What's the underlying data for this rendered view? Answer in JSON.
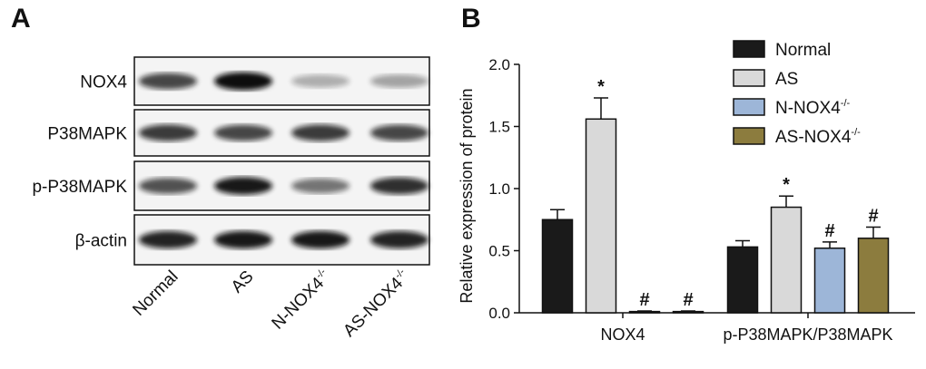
{
  "blot": {
    "panel_label": "A",
    "rows": [
      "NOX4",
      "P38MAPK",
      "p-P38MAPK",
      "β-actin"
    ],
    "lanes": [
      {
        "text": "Normal",
        "sup": null
      },
      {
        "text": "AS",
        "sup": null
      },
      {
        "text": "N-NOX4",
        "sup": "-/-"
      },
      {
        "text": "AS-NOX4",
        "sup": "-/-"
      }
    ]
  },
  "chart_data": {
    "type": "bar",
    "panel_label": "B",
    "ylabel": "Relative expression of protein",
    "categories": [
      "NOX4",
      "p-P38MAPK/P38MAPK"
    ],
    "ylim": [
      0,
      2.0
    ],
    "yticks": [
      {
        "value": 0,
        "label": "0.0"
      },
      {
        "value": 0.5,
        "label": "0.5"
      },
      {
        "value": 1.0,
        "label": "1.0"
      },
      {
        "value": 1.5,
        "label": "1.5"
      },
      {
        "value": 2.0,
        "label": "2.0"
      }
    ],
    "legend": "upper right",
    "series": [
      {
        "name": "Normal",
        "color": "#1a1a1a",
        "values": [
          0.75,
          0.53
        ],
        "errors": [
          0.08,
          0.05
        ],
        "annotations": [
          null,
          null
        ]
      },
      {
        "name": "AS",
        "color": "#d9d9d9",
        "values": [
          1.56,
          0.85
        ],
        "errors": [
          0.17,
          0.09
        ],
        "annotations": [
          "*",
          "*"
        ]
      },
      {
        "name": "N-NOX4",
        "name_superscript": "-/-",
        "color": "#9db6d8",
        "values": [
          0.01,
          0.52
        ],
        "errors": [
          0.005,
          0.05
        ],
        "annotations": [
          "#",
          "#"
        ]
      },
      {
        "name": "AS-NOX4",
        "name_superscript": "-/-",
        "color": "#8c7c3e",
        "values": [
          0.01,
          0.6
        ],
        "errors": [
          0.005,
          0.09
        ],
        "annotations": [
          "#",
          "#"
        ]
      }
    ]
  }
}
